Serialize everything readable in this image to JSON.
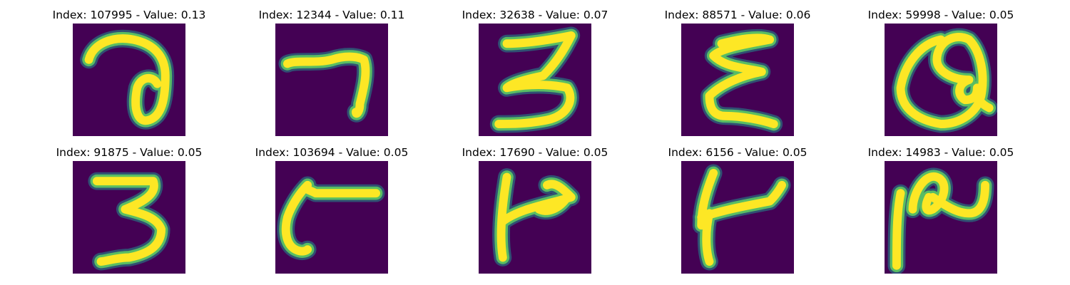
{
  "colors": {
    "background": "#440154",
    "stroke_core": "#fde725",
    "stroke_mid": "#5ec962",
    "stroke_edge": "#21918c"
  },
  "panels": [
    {
      "title": "Index: 107995 - Value: 0.13",
      "index": 107995,
      "value": 0.13
    },
    {
      "title": "Index: 12344 - Value: 0.11",
      "index": 12344,
      "value": 0.11
    },
    {
      "title": "Index: 32638 - Value: 0.07",
      "index": 32638,
      "value": 0.07
    },
    {
      "title": "Index: 88571 - Value: 0.06",
      "index": 88571,
      "value": 0.06
    },
    {
      "title": "Index: 59998 - Value: 0.05",
      "index": 59998,
      "value": 0.05
    },
    {
      "title": "Index: 91875 - Value: 0.05",
      "index": 91875,
      "value": 0.05
    },
    {
      "title": "Index: 103694 - Value: 0.05",
      "index": 103694,
      "value": 0.05
    },
    {
      "title": "Index: 17690 - Value: 0.05",
      "index": 17690,
      "value": 0.05
    },
    {
      "title": "Index: 6156 - Value: 0.05",
      "index": 6156,
      "value": 0.05
    },
    {
      "title": "Index: 14983 - Value: 0.05",
      "index": 14983,
      "value": 0.05
    }
  ]
}
